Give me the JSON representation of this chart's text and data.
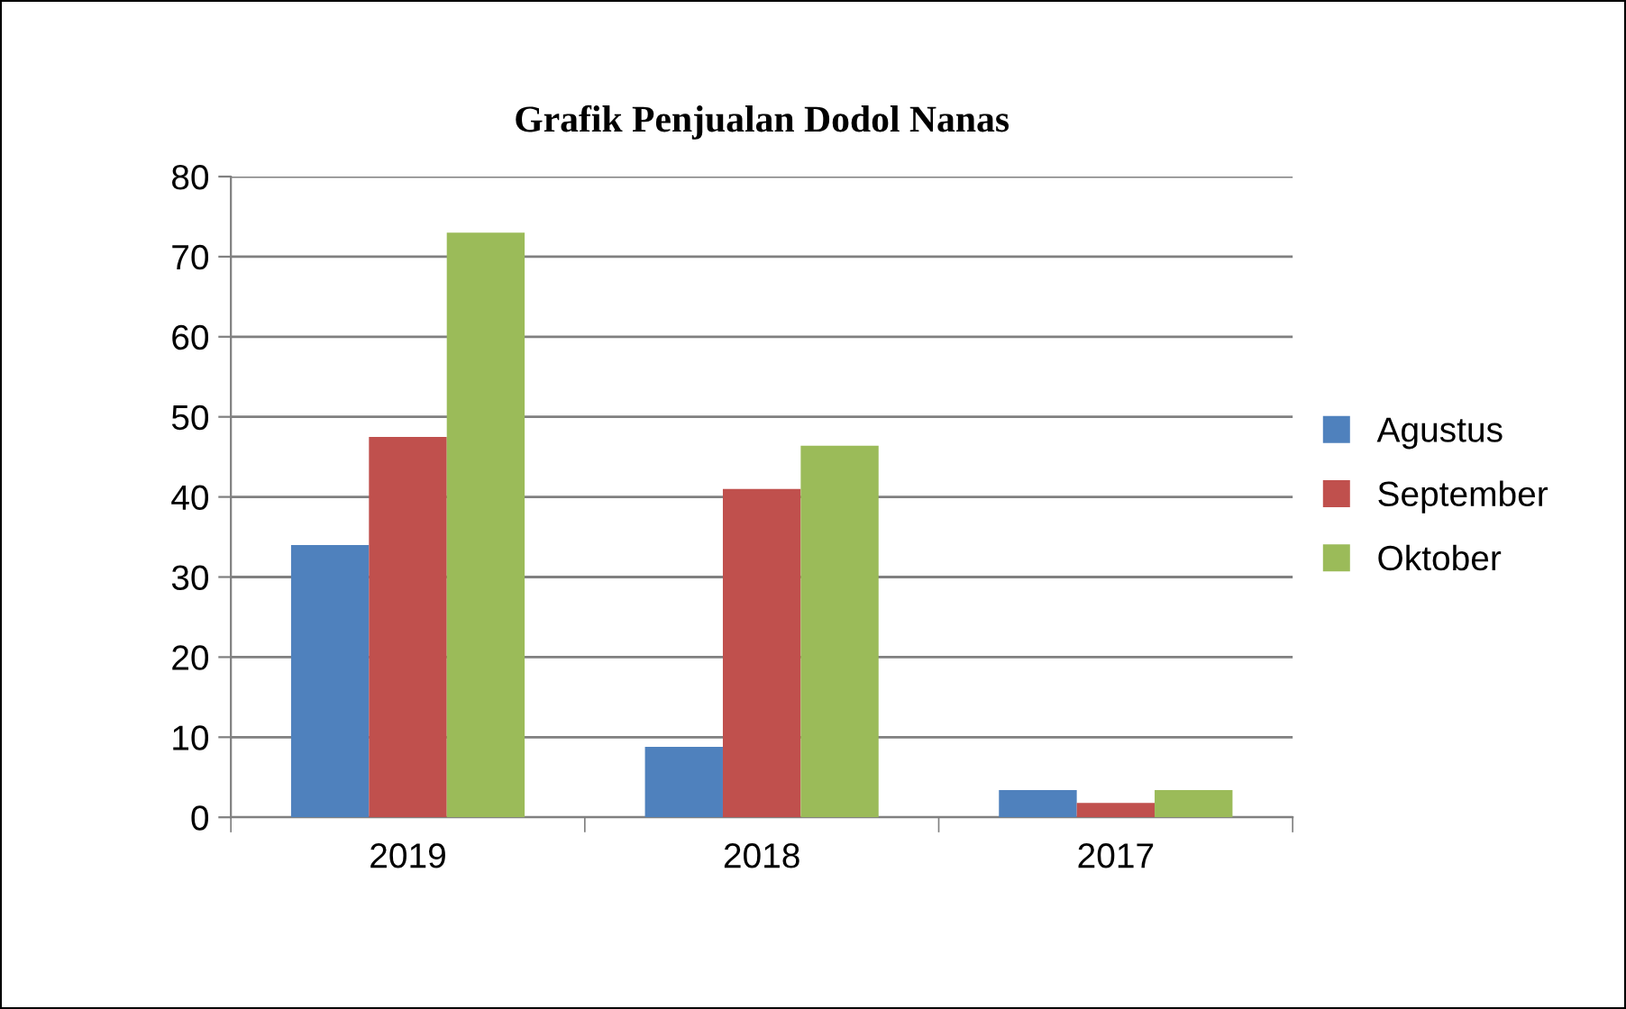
{
  "chart_data": {
    "type": "bar",
    "title": "Grafik Penjualan Dodol Nanas",
    "categories": [
      "2019",
      "2018",
      "2017"
    ],
    "series": [
      {
        "name": "Agustus",
        "color": "#4f81bd",
        "values": [
          34,
          8.8,
          3.4
        ]
      },
      {
        "name": "September",
        "color": "#c0504d",
        "values": [
          47.5,
          41,
          1.8
        ]
      },
      {
        "name": "Oktober",
        "color": "#9bbb59",
        "values": [
          73,
          46.4,
          3.4
        ]
      }
    ],
    "ylim": [
      0,
      80
    ],
    "yticks": [
      0,
      10,
      20,
      30,
      40,
      50,
      60,
      70,
      80
    ],
    "grid": "y",
    "legend": "right"
  }
}
